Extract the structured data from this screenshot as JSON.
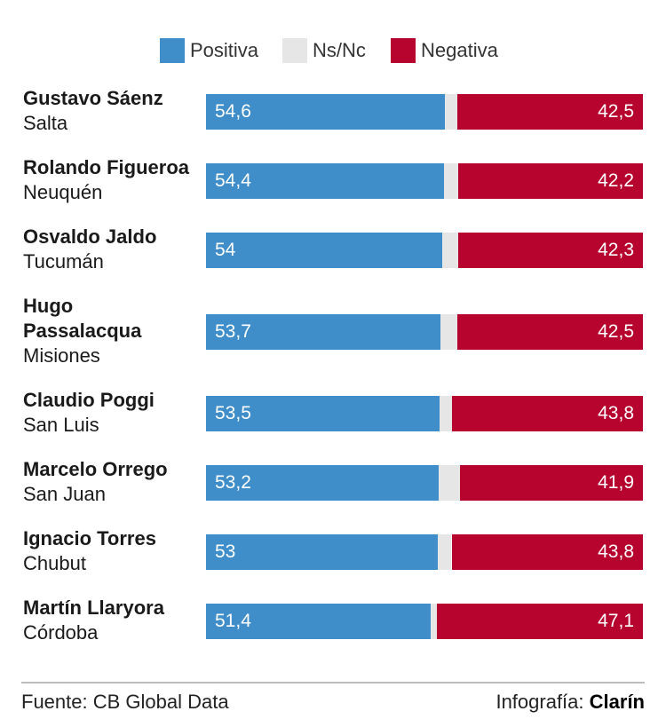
{
  "colors": {
    "positiva": "#3f8ec9",
    "nsnc": "#e6e6e6",
    "negativa": "#b6042e"
  },
  "legend": [
    {
      "key": "positiva",
      "label": "Positiva"
    },
    {
      "key": "nsnc",
      "label": "Ns/Nc"
    },
    {
      "key": "negativa",
      "label": "Negativa"
    }
  ],
  "chart_data": {
    "type": "bar",
    "orientation": "horizontal-stacked",
    "categories": [
      {
        "name": "Gustavo Sáenz",
        "province": "Salta"
      },
      {
        "name": "Rolando Figueroa",
        "province": "Neuquén"
      },
      {
        "name": "Osvaldo Jaldo",
        "province": "Tucumán"
      },
      {
        "name": "Hugo Passalacqua",
        "province": "Misiones"
      },
      {
        "name": "Claudio Poggi",
        "province": "San Luis"
      },
      {
        "name": "Marcelo Orrego",
        "province": "San Juan"
      },
      {
        "name": "Ignacio Torres",
        "province": "Chubut"
      },
      {
        "name": "Martín Llaryora",
        "province": "Córdoba"
      }
    ],
    "series": [
      {
        "name": "Positiva",
        "values": [
          54.6,
          54.4,
          54,
          53.7,
          53.5,
          53.2,
          53,
          51.4
        ],
        "labels": [
          "54,6",
          "54,4",
          "54",
          "53,7",
          "53,5",
          "53,2",
          "53",
          "51,4"
        ]
      },
      {
        "name": "Ns/Nc",
        "values": [
          2.9,
          3.4,
          3.7,
          3.8,
          2.7,
          4.9,
          3.2,
          1.5
        ]
      },
      {
        "name": "Negativa",
        "values": [
          42.5,
          42.2,
          42.3,
          42.5,
          43.8,
          41.9,
          43.8,
          47.1
        ],
        "labels": [
          "42,5",
          "42,2",
          "42,3",
          "42,5",
          "43,8",
          "41,9",
          "43,8",
          "47,1"
        ]
      }
    ],
    "xlim": [
      0,
      100
    ]
  },
  "footer": {
    "source": "Fuente: CB Global Data",
    "credit_prefix": "Infografía: ",
    "credit_brand": "Clarín"
  }
}
